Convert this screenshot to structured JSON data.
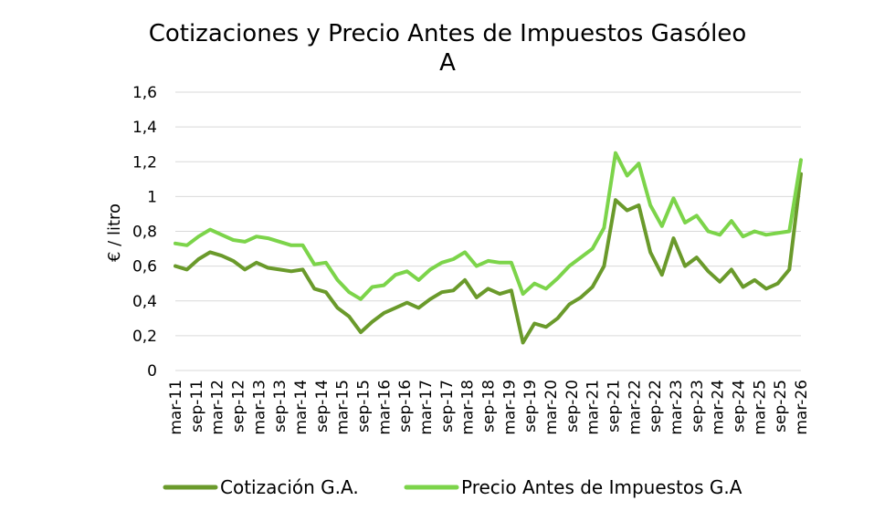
{
  "chart_data": {
    "type": "line",
    "title_line1": "Cotizaciones y Precio Antes de Impuestos Gasóleo",
    "title_line2": "A",
    "ylabel": "€ / litro",
    "xlabel": "",
    "ylim": [
      0,
      1.6
    ],
    "yticks": [
      "0",
      "0,2",
      "0,4",
      "0,6",
      "0,8",
      "1",
      "1,2",
      "1,4",
      "1,6"
    ],
    "grid": true,
    "legend": "bottom",
    "x_labels": [
      "mar-11",
      "sep-11",
      "mar-12",
      "sep-12",
      "mar-13",
      "sep-13",
      "mar-14",
      "sep-14",
      "mar-15",
      "sep-15",
      "mar-16",
      "sep-16",
      "mar-17",
      "sep-17",
      "mar-18",
      "sep-18",
      "mar-19",
      "sep-19",
      "mar-20",
      "sep-20",
      "mar-21",
      "sep-21",
      "mar-22",
      "sep-22",
      "mar-23",
      "sep-23",
      "mar-24",
      "sep-24",
      "mar-25",
      "sep-25",
      "mar-26"
    ],
    "series": [
      {
        "name": "Cotización G.A.",
        "color": "#6a9a2b",
        "values": [
          0.6,
          0.58,
          0.64,
          0.68,
          0.66,
          0.63,
          0.58,
          0.62,
          0.59,
          0.58,
          0.57,
          0.58,
          0.47,
          0.45,
          0.36,
          0.31,
          0.22,
          0.28,
          0.33,
          0.36,
          0.39,
          0.36,
          0.41,
          0.45,
          0.46,
          0.52,
          0.42,
          0.47,
          0.44,
          0.46,
          0.16,
          0.27,
          0.25,
          0.3,
          0.38,
          0.42,
          0.48,
          0.6,
          0.98,
          0.92,
          0.95,
          0.68,
          0.55,
          0.76,
          0.6,
          0.65,
          0.57,
          0.51,
          0.58,
          0.48,
          0.52,
          0.47,
          0.5,
          0.58,
          1.13
        ]
      },
      {
        "name": "Precio Antes de Impuestos G.A",
        "color": "#7cd44a",
        "values": [
          0.73,
          0.72,
          0.77,
          0.81,
          0.78,
          0.75,
          0.74,
          0.77,
          0.76,
          0.74,
          0.72,
          0.72,
          0.61,
          0.62,
          0.52,
          0.45,
          0.41,
          0.48,
          0.49,
          0.55,
          0.57,
          0.52,
          0.58,
          0.62,
          0.64,
          0.68,
          0.6,
          0.63,
          0.62,
          0.62,
          0.44,
          0.5,
          0.47,
          0.53,
          0.6,
          0.65,
          0.7,
          0.82,
          1.25,
          1.12,
          1.19,
          0.95,
          0.83,
          0.99,
          0.85,
          0.89,
          0.8,
          0.78,
          0.86,
          0.77,
          0.8,
          0.78,
          0.79,
          0.8,
          1.21
        ]
      }
    ]
  }
}
